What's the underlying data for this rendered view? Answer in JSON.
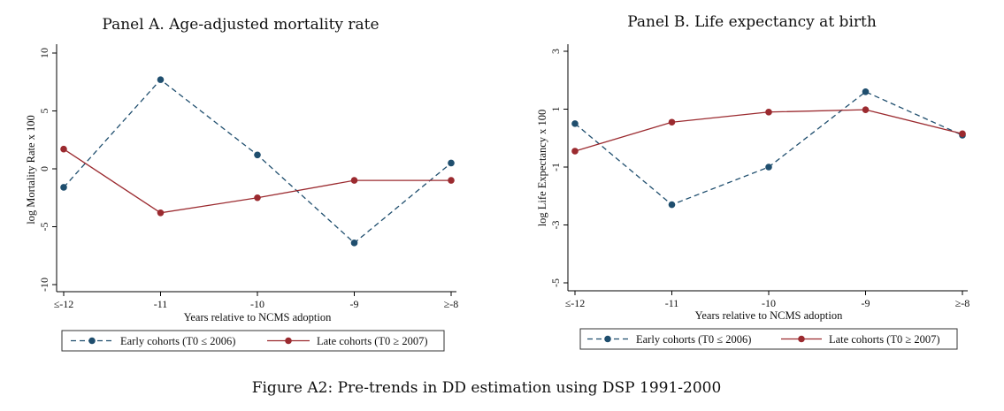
{
  "caption": "Figure A2: Pre-trends in DD estimation using DSP 1991-2000",
  "legend": {
    "early_label": "Early cohorts (T0 ≤ 2006)",
    "late_label": "Late cohorts (T0 ≥ 2007)"
  },
  "colors": {
    "early": "#1f4e6e",
    "late": "#9b2a2f"
  },
  "chart_data": [
    {
      "type": "line",
      "title": "Panel A. Age-adjusted mortality rate",
      "xlabel": "Years relative to NCMS adoption",
      "ylabel": "log Mortality Rate x 100",
      "categories": [
        "≤-12",
        "-11",
        "-10",
        "-9",
        "≥-8"
      ],
      "ylim": [
        -10.5,
        10.5
      ],
      "yticks": [
        10,
        5,
        0,
        -5,
        -10
      ],
      "ytick_labels": [
        "10",
        "5",
        "0",
        "-5",
        "-10"
      ],
      "series": [
        {
          "name": "Early cohorts (T0 ≤ 2006)",
          "style": "dashed",
          "values": [
            -1.6,
            7.7,
            1.2,
            -6.4,
            0.5
          ]
        },
        {
          "name": "Late cohorts (T0 ≥ 2007)",
          "style": "solid",
          "values": [
            1.7,
            -3.8,
            -2.5,
            -1.0,
            -1.0
          ]
        }
      ]
    },
    {
      "type": "line",
      "title": "Panel B. Life expectancy at birth",
      "xlabel": "Years relative to NCMS adoption",
      "ylabel": "log Life Expectancy x 100",
      "categories": [
        "≤-12",
        "-11",
        "-10",
        "-9",
        "≥-8"
      ],
      "ylim": [
        -5.2,
        3.2
      ],
      "yticks": [
        3,
        1,
        -1,
        -3,
        -5
      ],
      "ytick_labels": [
        "3",
        "1",
        "-1",
        "-3",
        "-5"
      ],
      "series": [
        {
          "name": "Early cohorts (T0 ≤ 2006)",
          "style": "dashed",
          "values": [
            0.5,
            -2.3,
            -1.0,
            1.6,
            0.1
          ]
        },
        {
          "name": "Late cohorts (T0 ≥ 2007)",
          "style": "solid",
          "values": [
            -0.45,
            0.55,
            0.9,
            0.98,
            0.15
          ]
        }
      ]
    }
  ]
}
